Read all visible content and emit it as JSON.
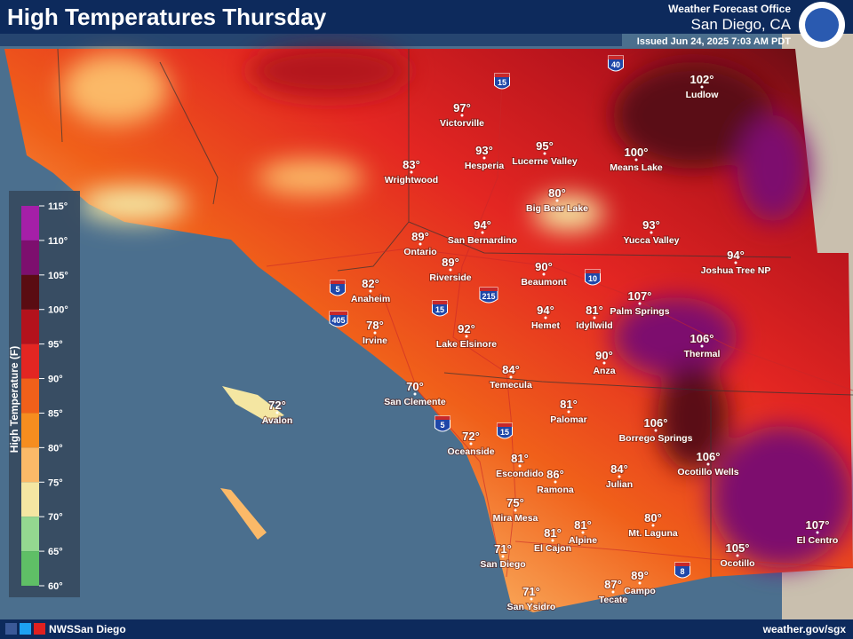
{
  "header": {
    "title": "High Temperatures Thursday",
    "office": "Weather Forecast Office",
    "location": "San Diego, CA",
    "issued": "Issued Jun 24, 2025 7:03 AM PDT"
  },
  "legend": {
    "title": "High Temperature (F)",
    "ticks": [
      "115°",
      "110°",
      "105°",
      "100°",
      "95°",
      "90°",
      "85°",
      "80°",
      "75°",
      "70°",
      "65°",
      "60°"
    ],
    "colors": [
      "#a51fa8",
      "#7d0f6e",
      "#5a0c12",
      "#b3121c",
      "#e32622",
      "#f0601a",
      "#f68d1f",
      "#fbb968",
      "#f4e6a2",
      "#94d890",
      "#5fbf66"
    ]
  },
  "cities": [
    {
      "temp": "102°",
      "name": "Ludlow"
    },
    {
      "temp": "97°",
      "name": "Victorville"
    },
    {
      "temp": "93°",
      "name": "Hesperia"
    },
    {
      "temp": "95°",
      "name": "Lucerne Valley"
    },
    {
      "temp": "100°",
      "name": "Means Lake"
    },
    {
      "temp": "83°",
      "name": "Wrightwood"
    },
    {
      "temp": "80°",
      "name": "Big Bear Lake"
    },
    {
      "temp": "94°",
      "name": "San Bernardino"
    },
    {
      "temp": "93°",
      "name": "Yucca Valley"
    },
    {
      "temp": "89°",
      "name": "Ontario"
    },
    {
      "temp": "89°",
      "name": "Riverside"
    },
    {
      "temp": "94°",
      "name": "Joshua Tree NP"
    },
    {
      "temp": "90°",
      "name": "Beaumont"
    },
    {
      "temp": "82°",
      "name": "Anaheim"
    },
    {
      "temp": "107°",
      "name": "Palm Springs"
    },
    {
      "temp": "94°",
      "name": "Hemet"
    },
    {
      "temp": "81°",
      "name": "Idyllwild"
    },
    {
      "temp": "78°",
      "name": "Irvine"
    },
    {
      "temp": "92°",
      "name": "Lake Elsinore"
    },
    {
      "temp": "106°",
      "name": "Thermal"
    },
    {
      "temp": "90°",
      "name": "Anza"
    },
    {
      "temp": "84°",
      "name": "Temecula"
    },
    {
      "temp": "70°",
      "name": "San Clemente"
    },
    {
      "temp": "72°",
      "name": "Avalon"
    },
    {
      "temp": "81°",
      "name": "Palomar"
    },
    {
      "temp": "106°",
      "name": "Borrego Springs"
    },
    {
      "temp": "72°",
      "name": "Oceanside"
    },
    {
      "temp": "81°",
      "name": "Escondido"
    },
    {
      "temp": "86°",
      "name": "Ramona"
    },
    {
      "temp": "84°",
      "name": "Julian"
    },
    {
      "temp": "106°",
      "name": "Ocotillo Wells"
    },
    {
      "temp": "75°",
      "name": "Mira Mesa"
    },
    {
      "temp": "80°",
      "name": "Mt. Laguna"
    },
    {
      "temp": "81°",
      "name": "Alpine"
    },
    {
      "temp": "81°",
      "name": "El Cajon"
    },
    {
      "temp": "107°",
      "name": "El Centro"
    },
    {
      "temp": "105°",
      "name": "Ocotillo"
    },
    {
      "temp": "71°",
      "name": "San Diego"
    },
    {
      "temp": "89°",
      "name": "Campo"
    },
    {
      "temp": "87°",
      "name": "Tecate"
    },
    {
      "temp": "71°",
      "name": "San Ysidro"
    }
  ],
  "shields": [
    "15",
    "40",
    "5",
    "215",
    "15",
    "10",
    "405",
    "5",
    "15",
    "8"
  ],
  "footer": {
    "social": "NWSSan Diego",
    "url": "weather.gov/sgx"
  }
}
